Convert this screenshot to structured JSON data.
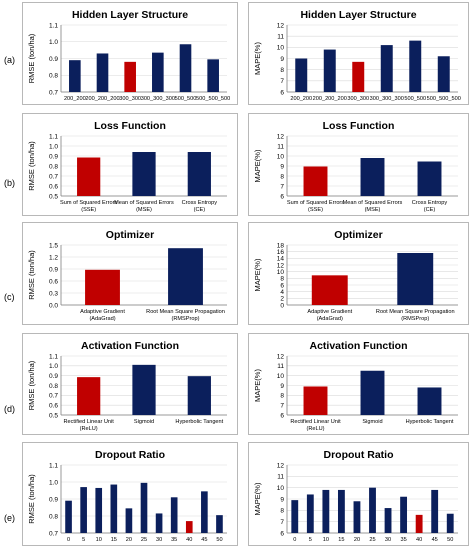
{
  "row_labels": [
    "(a)",
    "(b)",
    "(c)",
    "(d)",
    "(e)"
  ],
  "colors": {
    "default_bar": "#0b1f5c",
    "best_bar": "#c00000"
  },
  "chart_data": [
    {
      "type": "bar",
      "title": "Hidden Layer Structure",
      "ylabel": "RMSE (ton/ha)",
      "xlabel": "",
      "ylim": [
        0.7,
        1.1
      ],
      "yticks": [
        "0.7",
        "0.8",
        "0.9",
        "1.0",
        "1.1"
      ],
      "categories": [
        [
          "200_200"
        ],
        [
          "200_200_200"
        ],
        [
          "300_300"
        ],
        [
          "300_300_300"
        ],
        [
          "500_500"
        ],
        [
          "500_500_500"
        ]
      ],
      "values": [
        0.89,
        0.93,
        0.88,
        0.935,
        0.985,
        0.895
      ],
      "highlight_index": 2
    },
    {
      "type": "bar",
      "title": "Hidden Layer Structure",
      "ylabel": "MAPE(%)",
      "xlabel": "",
      "ylim": [
        6,
        12
      ],
      "yticks": [
        "6",
        "7",
        "8",
        "9",
        "10",
        "11",
        "12"
      ],
      "categories": [
        [
          "200_200"
        ],
        [
          "200_200_200"
        ],
        [
          "300_300"
        ],
        [
          "300_300_300"
        ],
        [
          "500_500"
        ],
        [
          "500_500_500"
        ]
      ],
      "values": [
        9.0,
        9.8,
        8.7,
        10.2,
        10.6,
        9.2
      ],
      "highlight_index": 2
    },
    {
      "type": "bar",
      "title": "Loss Function",
      "ylabel": "RMSE (ton/ha)",
      "xlabel": "",
      "ylim": [
        0.5,
        1.1
      ],
      "yticks": [
        "0.5",
        "0.6",
        "0.7",
        "0.8",
        "0.9",
        "1.0",
        "1.1"
      ],
      "categories": [
        [
          "Sum of Squared Errors",
          "(SSE)"
        ],
        [
          "Mean of Squared Errors",
          "(MSE)"
        ],
        [
          "Cross Entropy",
          "(CE)"
        ]
      ],
      "values": [
        0.885,
        0.94,
        0.94
      ],
      "highlight_index": 0
    },
    {
      "type": "bar",
      "title": "Loss Function",
      "ylabel": "MAPE(%)",
      "xlabel": "",
      "ylim": [
        6,
        12
      ],
      "yticks": [
        "6",
        "7",
        "8",
        "9",
        "10",
        "11",
        "12"
      ],
      "categories": [
        [
          "Sum of Squared Errors",
          "(SSE)"
        ],
        [
          "Mean of Squared Errors",
          "(MSE)"
        ],
        [
          "Cross Entropy",
          "(CE)"
        ]
      ],
      "values": [
        8.95,
        9.8,
        9.45
      ],
      "highlight_index": 0
    },
    {
      "type": "bar",
      "title": "Optimizer",
      "ylabel": "RMSE (ton/ha)",
      "xlabel": "",
      "ylim": [
        0,
        1.5
      ],
      "yticks": [
        "0.0",
        "0.3",
        "0.6",
        "0.9",
        "1.2",
        "1.5"
      ],
      "categories": [
        [
          "Adaptive Gradient",
          "(AdaGrad)"
        ],
        [
          "Root Mean Square Propagation",
          "(RMSProp)"
        ]
      ],
      "values": [
        0.88,
        1.42
      ],
      "highlight_index": 0
    },
    {
      "type": "bar",
      "title": "Optimizer",
      "ylabel": "MAPE(%)",
      "xlabel": "",
      "ylim": [
        0,
        18
      ],
      "yticks": [
        "0",
        "2",
        "4",
        "6",
        "8",
        "10",
        "12",
        "14",
        "16",
        "18"
      ],
      "categories": [
        [
          "Adaptive Gradient",
          "(AdaGrad)"
        ],
        [
          "Root Mean Square Propagation",
          "(RMSProp)"
        ]
      ],
      "values": [
        8.9,
        15.6
      ],
      "highlight_index": 0
    },
    {
      "type": "bar",
      "title": "Activation Function",
      "ylabel": "RMSE (ton/ha)",
      "xlabel": "",
      "ylim": [
        0.5,
        1.1
      ],
      "yticks": [
        "0.5",
        "0.6",
        "0.7",
        "0.8",
        "0.9",
        "1.0",
        "1.1"
      ],
      "categories": [
        [
          "Rectified Linear Unit",
          "(ReLU)"
        ],
        [
          "Sigmoid"
        ],
        [
          "Hyperbolic Tangent"
        ]
      ],
      "values": [
        0.885,
        1.01,
        0.895
      ],
      "highlight_index": 0
    },
    {
      "type": "bar",
      "title": "Activation Function",
      "ylabel": "MAPE(%)",
      "xlabel": "",
      "ylim": [
        6,
        12
      ],
      "yticks": [
        "6",
        "7",
        "8",
        "9",
        "10",
        "11",
        "12"
      ],
      "categories": [
        [
          "Rectified Linear Unit",
          "(ReLU)"
        ],
        [
          "Sigmoid"
        ],
        [
          "Hyperbolic Tangent"
        ]
      ],
      "values": [
        8.9,
        10.5,
        8.8
      ],
      "highlight_index": 0
    },
    {
      "type": "bar",
      "title": "Dropout Ratio",
      "ylabel": "RMSE (ton/ha)",
      "xlabel": "",
      "ylim": [
        0.7,
        1.1
      ],
      "yticks": [
        "0.7",
        "0.8",
        "0.9",
        "1.0",
        "1.1"
      ],
      "categories": [
        [
          "0"
        ],
        [
          "5"
        ],
        [
          "10"
        ],
        [
          "15"
        ],
        [
          "20"
        ],
        [
          "25"
        ],
        [
          "30"
        ],
        [
          "35"
        ],
        [
          "40"
        ],
        [
          "45"
        ],
        [
          "50"
        ]
      ],
      "values": [
        0.89,
        0.97,
        0.965,
        0.985,
        0.845,
        0.995,
        0.815,
        0.91,
        0.77,
        0.945,
        0.805
      ],
      "highlight_index": 8
    },
    {
      "type": "bar",
      "title": "Dropout Ratio",
      "ylabel": "MAPE(%)",
      "xlabel": "",
      "ylim": [
        6,
        12
      ],
      "yticks": [
        "6",
        "7",
        "8",
        "9",
        "10",
        "11",
        "12"
      ],
      "categories": [
        [
          "0"
        ],
        [
          "5"
        ],
        [
          "10"
        ],
        [
          "15"
        ],
        [
          "20"
        ],
        [
          "25"
        ],
        [
          "30"
        ],
        [
          "35"
        ],
        [
          "40"
        ],
        [
          "45"
        ],
        [
          "50"
        ]
      ],
      "values": [
        8.9,
        9.4,
        9.8,
        9.8,
        8.8,
        10.0,
        8.2,
        9.2,
        7.6,
        9.8,
        7.7
      ],
      "highlight_index": 8
    }
  ]
}
